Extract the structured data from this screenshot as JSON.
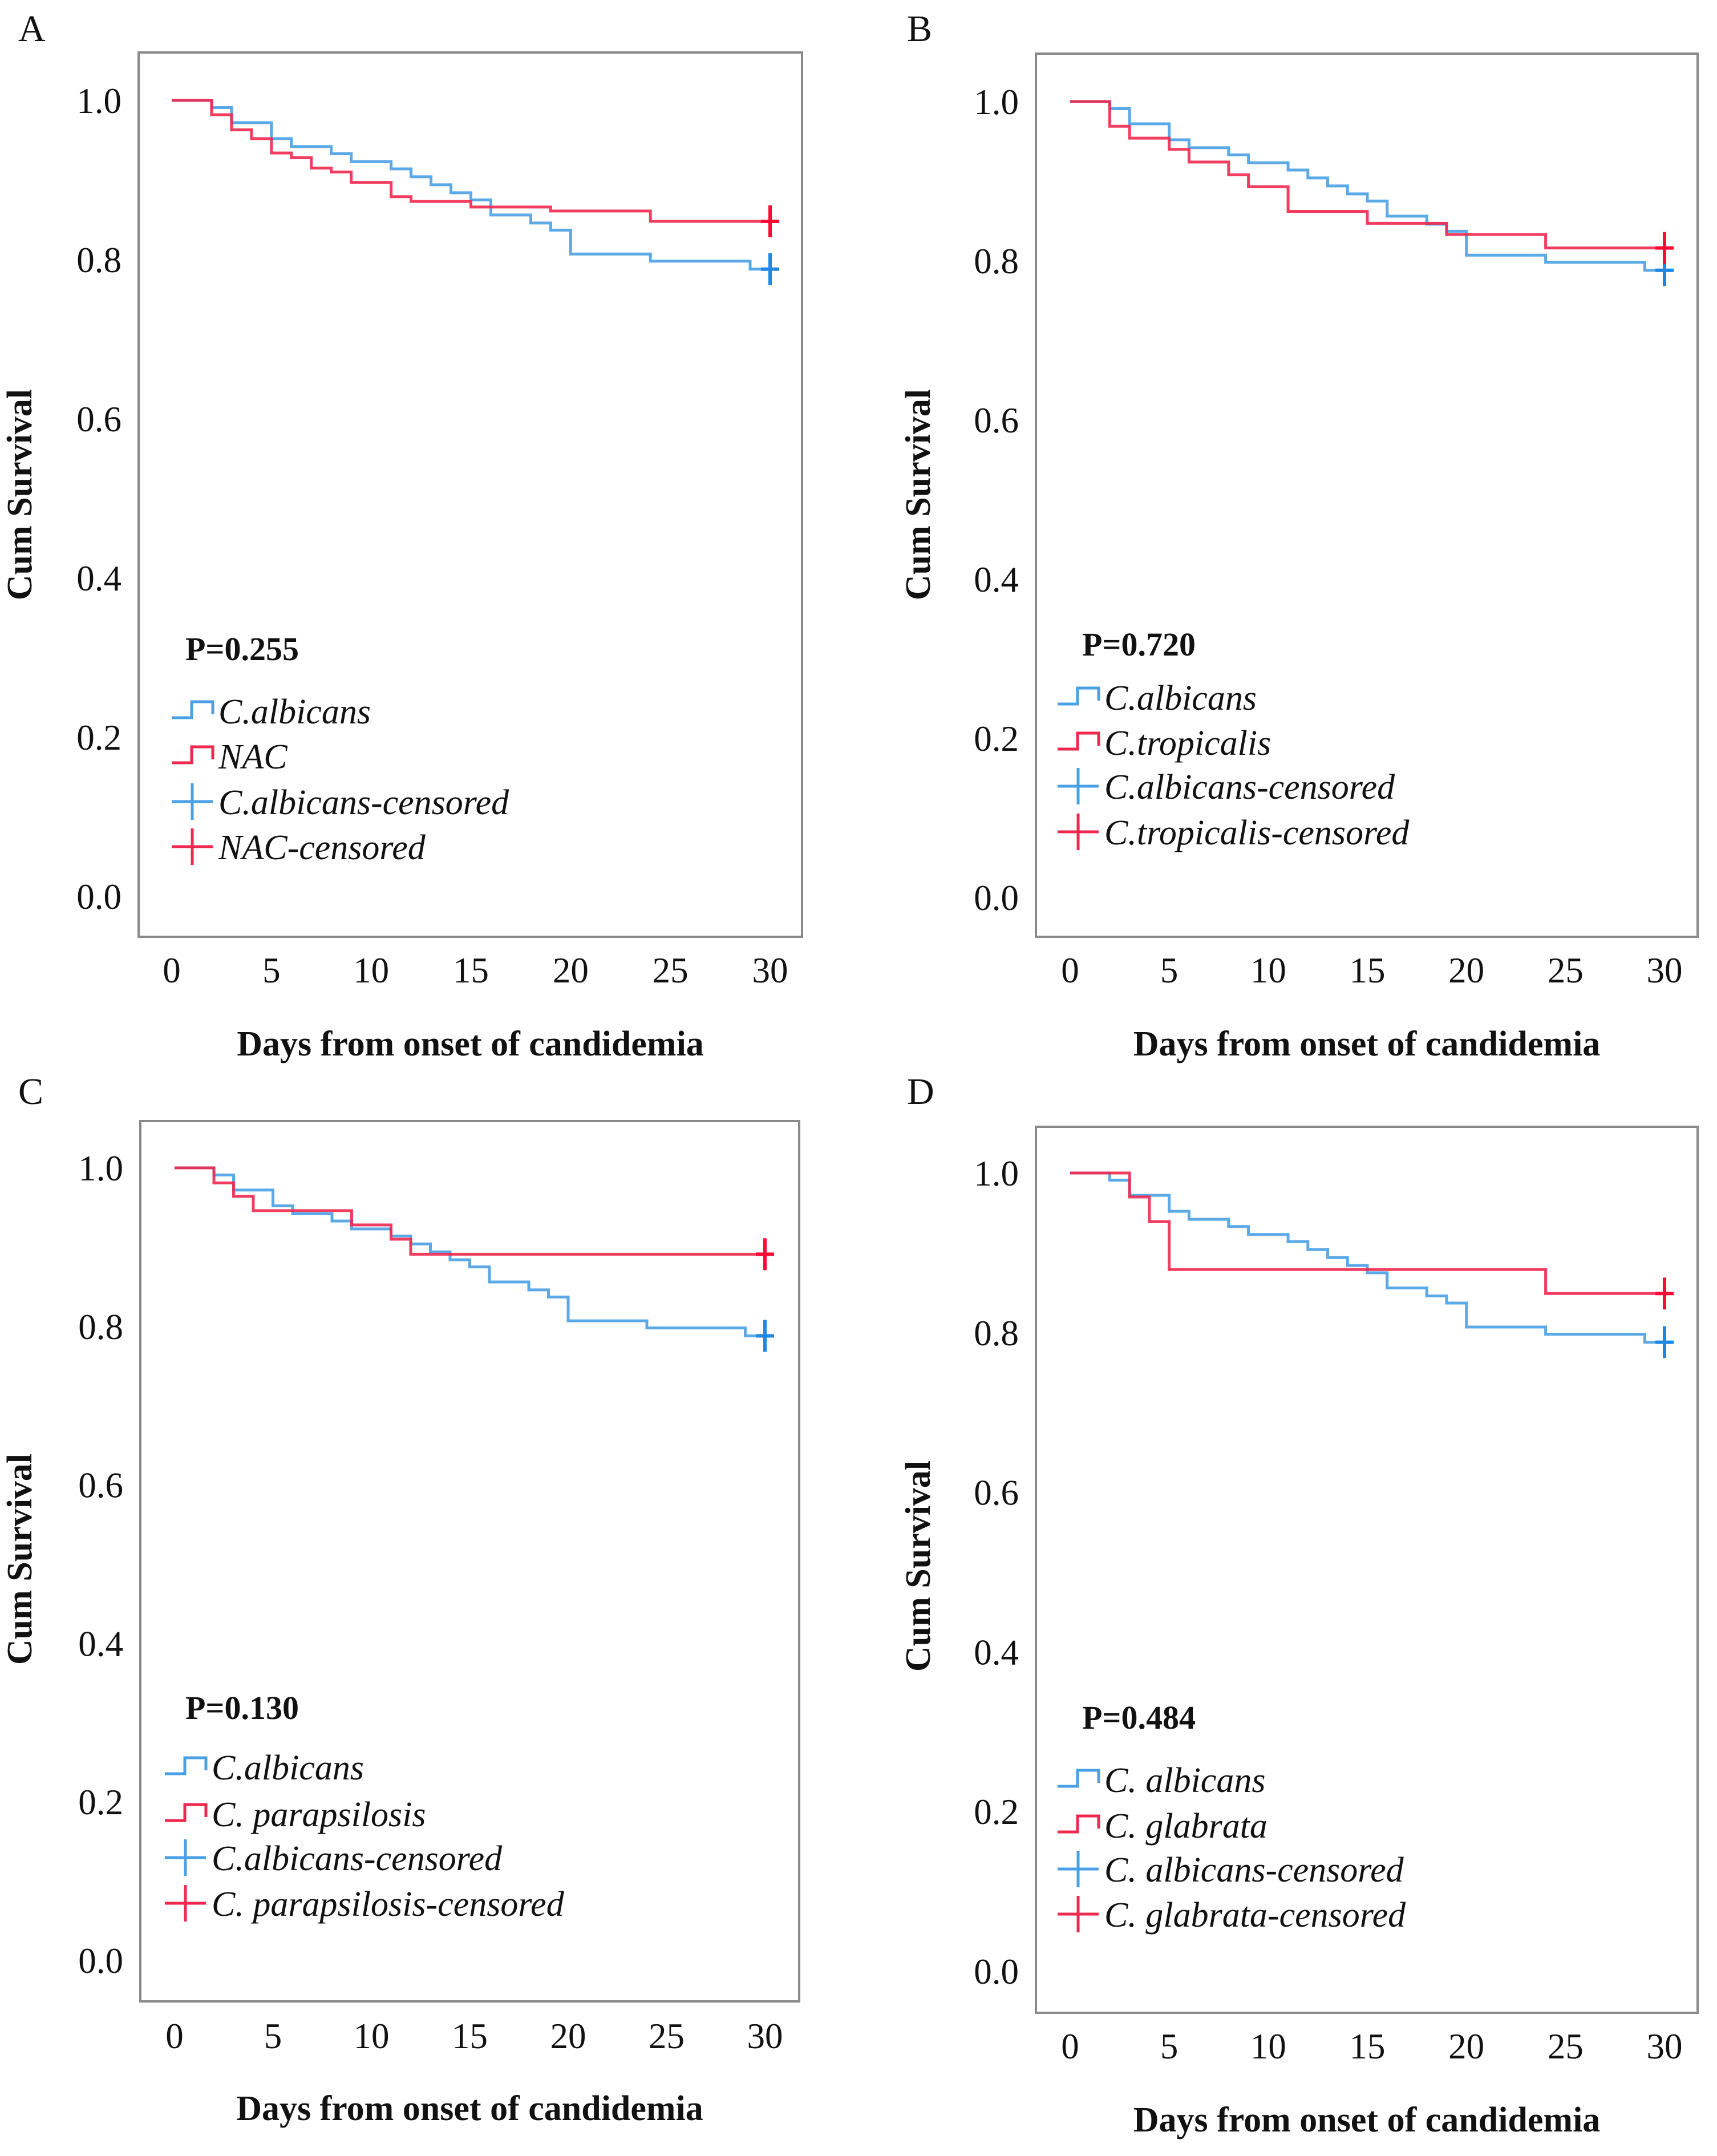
{
  "colors": {
    "blue": "#4aa0e6",
    "red": "#f0284f",
    "blue_censor": "#1e88e5",
    "red_censor": "#ff0a35",
    "frame": "#8a8a8a"
  },
  "chart_data": [
    {
      "panel": "A",
      "type": "line",
      "subtype": "kaplan-meier step",
      "xlabel": "Days from onset of candidemia",
      "ylabel": "Cum Survival",
      "xlim": [
        0,
        30
      ],
      "ylim": [
        0,
        1.0
      ],
      "xticks": [
        "0",
        "5",
        "10",
        "15",
        "20",
        "25",
        "30"
      ],
      "yticks": [
        "0.0",
        "0.2",
        "0.4",
        "0.6",
        "0.8",
        "1.0"
      ],
      "p_value": "P=0.255",
      "legend": [
        "C.albicans",
        "NAC",
        "C.albicans-censored",
        "NAC-censored"
      ],
      "legend_position": "bottom-left",
      "series": [
        {
          "name": "C.albicans",
          "color": "blue",
          "steps": [
            [
              0,
              1
            ],
            [
              2,
              0.991
            ],
            [
              3,
              0.972
            ],
            [
              5,
              0.952
            ],
            [
              6,
              0.942
            ],
            [
              8,
              0.933
            ],
            [
              9,
              0.923
            ],
            [
              11,
              0.914
            ],
            [
              12,
              0.904
            ],
            [
              13,
              0.894
            ],
            [
              14,
              0.884
            ],
            [
              15,
              0.875
            ],
            [
              16,
              0.856
            ],
            [
              18,
              0.846
            ],
            [
              19,
              0.837
            ],
            [
              20,
              0.807
            ],
            [
              24,
              0.798
            ],
            [
              29,
              0.788
            ]
          ],
          "censored": [
            [
              30,
              0.788
            ]
          ]
        },
        {
          "name": "NAC",
          "color": "red",
          "steps": [
            [
              0,
              1
            ],
            [
              2,
              0.982
            ],
            [
              3,
              0.963
            ],
            [
              4,
              0.952
            ],
            [
              5,
              0.934
            ],
            [
              6,
              0.928
            ],
            [
              7,
              0.915
            ],
            [
              8,
              0.91
            ],
            [
              9,
              0.897
            ],
            [
              11,
              0.879
            ],
            [
              12,
              0.873
            ],
            [
              15,
              0.866
            ],
            [
              19,
              0.861
            ],
            [
              24,
              0.848
            ]
          ],
          "censored": [
            [
              30,
              0.848
            ]
          ]
        }
      ]
    },
    {
      "panel": "B",
      "type": "line",
      "subtype": "kaplan-meier step",
      "xlabel": "Days from onset of candidemia",
      "ylabel": "Cum Survival",
      "xlim": [
        0,
        30
      ],
      "ylim": [
        0,
        1.0
      ],
      "xticks": [
        "0",
        "5",
        "10",
        "15",
        "20",
        "25",
        "30"
      ],
      "yticks": [
        "0.0",
        "0.2",
        "0.4",
        "0.6",
        "0.8",
        "1.0"
      ],
      "p_value": "P=0.720",
      "legend": [
        "C.albicans",
        "C.tropicalis",
        "C.albicans-censored",
        "C.tropicalis-censored"
      ],
      "legend_position": "bottom-left",
      "series": [
        {
          "name": "C.albicans",
          "color": "blue",
          "steps": [
            [
              0,
              1
            ],
            [
              2,
              0.991
            ],
            [
              3,
              0.972
            ],
            [
              5,
              0.952
            ],
            [
              6,
              0.942
            ],
            [
              8,
              0.933
            ],
            [
              9,
              0.923
            ],
            [
              11,
              0.914
            ],
            [
              12,
              0.904
            ],
            [
              13,
              0.894
            ],
            [
              14,
              0.884
            ],
            [
              15,
              0.875
            ],
            [
              16,
              0.856
            ],
            [
              18,
              0.846
            ],
            [
              19,
              0.837
            ],
            [
              20,
              0.807
            ],
            [
              24,
              0.798
            ],
            [
              29,
              0.788
            ]
          ],
          "censored": [
            [
              30,
              0.788
            ]
          ]
        },
        {
          "name": "C.tropicalis",
          "color": "red",
          "steps": [
            [
              0,
              1
            ],
            [
              2,
              0.969
            ],
            [
              3,
              0.954
            ],
            [
              5,
              0.94
            ],
            [
              6,
              0.924
            ],
            [
              8,
              0.908
            ],
            [
              9,
              0.893
            ],
            [
              11,
              0.862
            ],
            [
              15,
              0.847
            ],
            [
              19,
              0.833
            ],
            [
              24,
              0.816
            ]
          ],
          "censored": [
            [
              30,
              0.816
            ]
          ]
        }
      ]
    },
    {
      "panel": "C",
      "type": "line",
      "subtype": "kaplan-meier step",
      "xlabel": "Days from onset of candidemia",
      "ylabel": "Cum Survival",
      "xlim": [
        0,
        30
      ],
      "ylim": [
        0,
        1.0
      ],
      "xticks": [
        "0",
        "5",
        "10",
        "15",
        "20",
        "25",
        "30"
      ],
      "yticks": [
        "0.0",
        "0.2",
        "0.4",
        "0.6",
        "0.8",
        "1.0"
      ],
      "p_value": "P=0.130",
      "legend": [
        "C.albicans",
        "C. parapsilosis",
        "C.albicans-censored",
        "C. parapsilosis-censored"
      ],
      "legend_position": "bottom-left",
      "series": [
        {
          "name": "C.albicans",
          "color": "blue",
          "steps": [
            [
              0,
              1
            ],
            [
              2,
              0.991
            ],
            [
              3,
              0.972
            ],
            [
              5,
              0.952
            ],
            [
              6,
              0.942
            ],
            [
              8,
              0.933
            ],
            [
              9,
              0.923
            ],
            [
              11,
              0.914
            ],
            [
              12,
              0.904
            ],
            [
              13,
              0.894
            ],
            [
              14,
              0.884
            ],
            [
              15,
              0.875
            ],
            [
              16,
              0.856
            ],
            [
              18,
              0.846
            ],
            [
              19,
              0.837
            ],
            [
              20,
              0.807
            ],
            [
              24,
              0.798
            ],
            [
              29,
              0.788
            ]
          ],
          "censored": [
            [
              30,
              0.788
            ]
          ]
        },
        {
          "name": "C. parapsilosis",
          "color": "red",
          "steps": [
            [
              0,
              1
            ],
            [
              2,
              0.981
            ],
            [
              3,
              0.964
            ],
            [
              4,
              0.946
            ],
            [
              9,
              0.928
            ],
            [
              11,
              0.91
            ],
            [
              12,
              0.891
            ]
          ],
          "censored": [
            [
              30,
              0.891
            ]
          ]
        }
      ]
    },
    {
      "panel": "D",
      "type": "line",
      "subtype": "kaplan-meier step",
      "xlabel": "Days from onset of candidemia",
      "ylabel": "Cum Survival",
      "xlim": [
        0,
        30
      ],
      "ylim": [
        0,
        1.0
      ],
      "xticks": [
        "0",
        "5",
        "10",
        "15",
        "20",
        "25",
        "30"
      ],
      "yticks": [
        "0.0",
        "0.2",
        "0.4",
        "0.6",
        "0.8",
        "1.0"
      ],
      "p_value": "P=0.484",
      "legend": [
        "C. albicans",
        "C. glabrata",
        "C. albicans-censored",
        "C. glabrata-censored"
      ],
      "legend_position": "bottom-left",
      "series": [
        {
          "name": "C. albicans",
          "color": "blue",
          "steps": [
            [
              0,
              1
            ],
            [
              2,
              0.991
            ],
            [
              3,
              0.972
            ],
            [
              5,
              0.952
            ],
            [
              6,
              0.942
            ],
            [
              8,
              0.933
            ],
            [
              9,
              0.923
            ],
            [
              11,
              0.914
            ],
            [
              12,
              0.904
            ],
            [
              13,
              0.894
            ],
            [
              14,
              0.884
            ],
            [
              15,
              0.875
            ],
            [
              16,
              0.856
            ],
            [
              18,
              0.846
            ],
            [
              19,
              0.837
            ],
            [
              20,
              0.807
            ],
            [
              24,
              0.798
            ],
            [
              29,
              0.788
            ]
          ],
          "censored": [
            [
              30,
              0.788
            ]
          ]
        },
        {
          "name": "C. glabrata",
          "color": "red",
          "steps": [
            [
              0,
              1
            ],
            [
              3,
              0.97
            ],
            [
              4,
              0.939
            ],
            [
              5,
              0.879
            ],
            [
              24,
              0.849
            ]
          ],
          "censored": [
            [
              30,
              0.849
            ]
          ]
        }
      ]
    }
  ]
}
